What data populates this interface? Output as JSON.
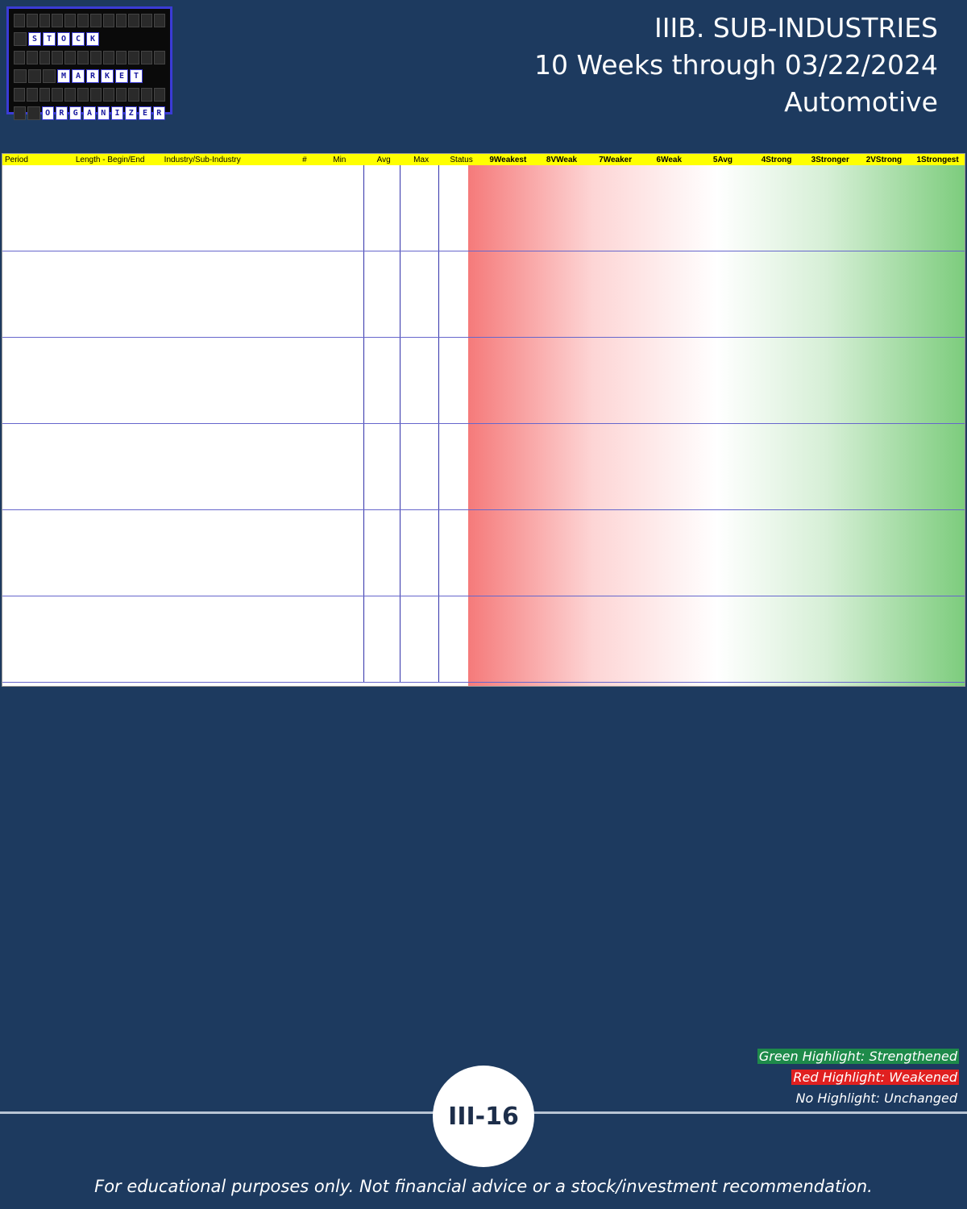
{
  "header": {
    "logo_words": [
      "STOCK",
      "MARKET",
      "ORGANIZER"
    ],
    "title_line1": "IIIB. SUB-INDUSTRIES",
    "title_line2": "10 Weeks through 03/22/2024",
    "title_line3": "Automotive"
  },
  "table": {
    "columns": [
      "Period",
      "Length - Begin/End",
      "Industry/Sub-Industry",
      "#",
      "Min",
      "Avg",
      "Max",
      "Status"
    ],
    "zones": [
      "9Weakest",
      "8VWeak",
      "7Weaker",
      "6Weak",
      "5Avg",
      "4Strong",
      "3Stronger",
      "2VStrong",
      "1Strongest"
    ],
    "zone_colors": {
      "weakest": "#f57a7a",
      "avg": "#ffffff",
      "strongest": "#7ccc7c"
    }
  },
  "legend": {
    "green": "Green Highlight: Strengthened",
    "red": "Red Highlight: Weakened",
    "none": "No Highlight: Unchanged"
  },
  "page_number": "III-16",
  "footer": "For educational purposes only. Not financial advice or a stock/investment recommendation."
}
